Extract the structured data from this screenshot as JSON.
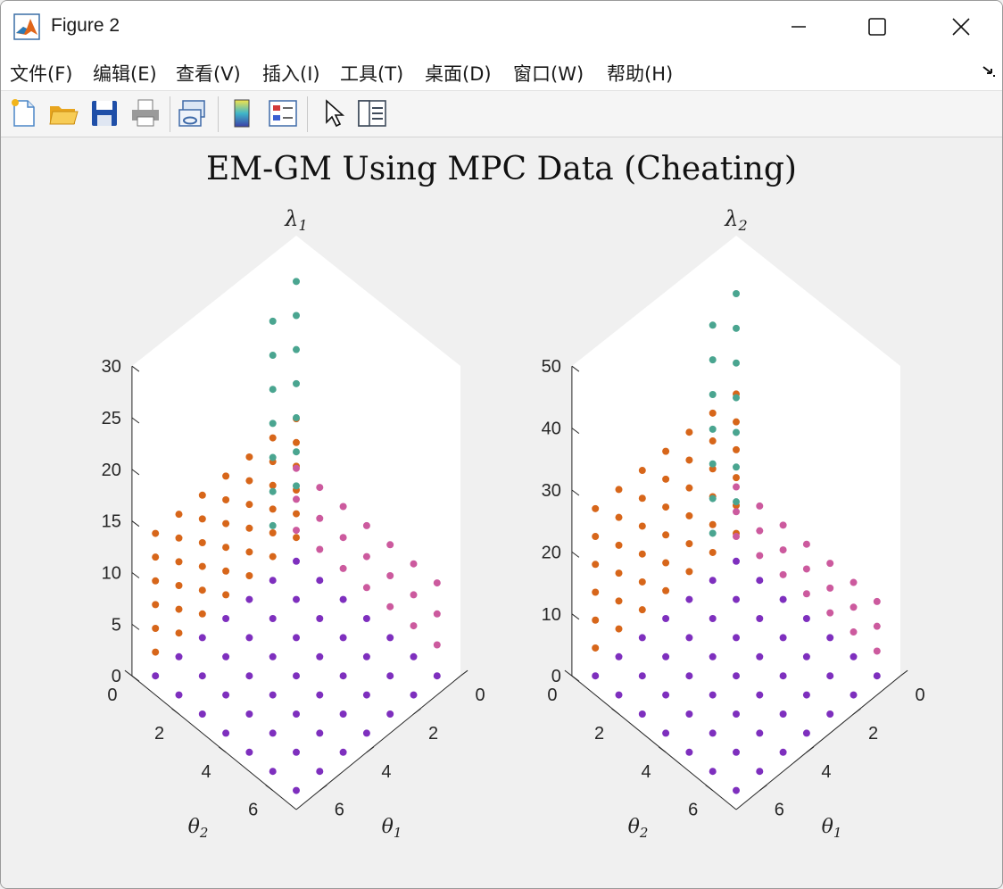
{
  "window": {
    "title": "Figure 2"
  },
  "menu": [
    "文件(F)",
    "编辑(E)",
    "查看(V)",
    "插入(I)",
    "工具(T)",
    "桌面(D)",
    "窗口(W)",
    "帮助(H)"
  ],
  "toolbar": [
    "new-figure",
    "open-file",
    "save-figure",
    "print-figure",
    "link-plot",
    "insert-colorbar",
    "insert-legend",
    "edit-plot",
    "property-inspector"
  ],
  "figure_title": "EM-GM Using MPC Data (Cheating)",
  "colors": {
    "purple": "#7e2fbe",
    "teal": "#4aa590",
    "orange": "#d7661a",
    "pink": "#cc5a9e"
  },
  "chart_data": [
    {
      "type": "scatter",
      "title": "λ1",
      "xlabel": "θ1",
      "ylabel": "θ2",
      "zlabel": "",
      "xlim": [
        0,
        7
      ],
      "ylim": [
        0,
        7
      ],
      "zlim": [
        0,
        30
      ],
      "zticks": [
        "0",
        "5",
        "10",
        "15",
        "20",
        "25",
        "30"
      ],
      "xticks": [
        "0",
        "2",
        "4",
        "6"
      ],
      "yticks": [
        "0",
        "2",
        "4",
        "6"
      ],
      "view": "3d",
      "series": [
        {
          "color": "purple",
          "z": 0,
          "desc": "8x8 grid θ1=0.5..7, θ2=0.5..7 at z=0"
        },
        {
          "color": "teal",
          "grid": "θ1=0.5, θ2=0.5..7",
          "z_start": 8,
          "z_step": 3.5
        },
        {
          "color": "orange",
          "grid": "θ1=0.5..7 x θ2=0.5 ... 6 rows",
          "z_start": 2,
          "z_step": 2
        },
        {
          "color": "pink",
          "grid": "θ2 rows",
          "z_start": 2,
          "z_step": 2
        }
      ]
    },
    {
      "type": "scatter",
      "title": "λ2",
      "xlabel": "θ1",
      "ylabel": "θ2",
      "zlabel": "",
      "xlim": [
        0,
        7
      ],
      "ylim": [
        0,
        7
      ],
      "zlim": [
        0,
        50
      ],
      "zticks": [
        "0",
        "10",
        "20",
        "30",
        "40",
        "50"
      ],
      "xticks": [
        "0",
        "2",
        "4",
        "6"
      ],
      "yticks": [
        "0",
        "2",
        "4",
        "6"
      ],
      "view": "3d"
    }
  ]
}
